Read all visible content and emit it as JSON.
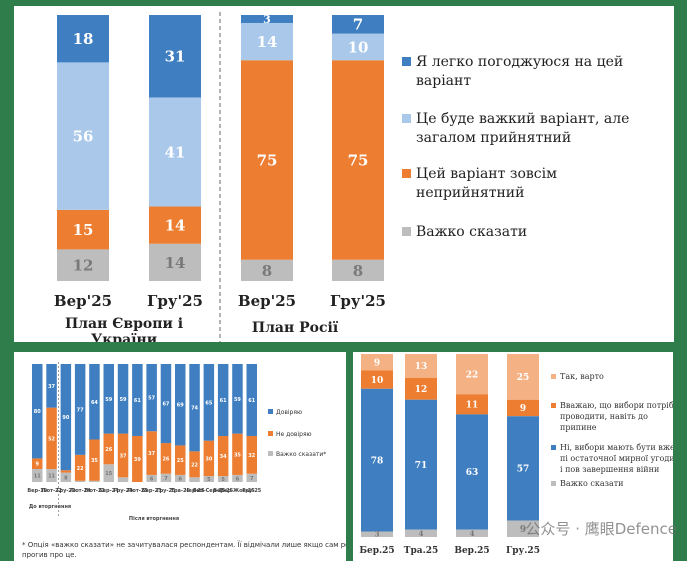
{
  "colors": {
    "agree": "#3f7fc1",
    "acceptable": "#a9c8ea",
    "unacceptable": "#ed7d31",
    "hard": "#bdbdbd",
    "yes_light": "#f4b183"
  },
  "chart_data": [
    {
      "type": "bar",
      "stacked": true,
      "categories": [
        "Вер'25",
        "Гру'25",
        "Вер'25",
        "Гру'25"
      ],
      "groups": [
        {
          "label": "План Європи і України",
          "categories": [
            0,
            1
          ]
        },
        {
          "label": "План Росії",
          "categories": [
            2,
            3
          ]
        }
      ],
      "series": [
        {
          "name": "Я легко погоджуюся на цей варіант",
          "color_key": "agree",
          "values": [
            18,
            31,
            3,
            7
          ]
        },
        {
          "name": "Це буде важкий варіант, але загалом прийнятний",
          "color_key": "acceptable",
          "values": [
            56,
            41,
            14,
            10
          ]
        },
        {
          "name": "Цей варіант зовсім неприйнятний",
          "color_key": "unacceptable",
          "values": [
            15,
            14,
            75,
            75
          ]
        },
        {
          "name": "Важко сказати",
          "color_key": "hard",
          "values": [
            12,
            14,
            8,
            8
          ]
        }
      ],
      "ylim": [
        0,
        100
      ],
      "legend_position": "right"
    },
    {
      "type": "bar",
      "stacked": true,
      "categories": [
        "Вер-19",
        "Лют-22",
        "Гру-22",
        "Лют-24",
        "Лют-23",
        "Бер-24",
        "Гру-24",
        "Лют-25",
        "Бер-25",
        "Гру-25",
        "Тра-25",
        "Чер-25",
        "Лип-Сер-25",
        "Вер-25",
        "Вер-Жов-25",
        "Гру-25"
      ],
      "group_labels": [
        "До вторгнення",
        "Після вторгнення"
      ],
      "series": [
        {
          "name": "Довіряю",
          "color_key": "agree",
          "values": [
            80,
            37,
            90,
            77,
            64,
            59,
            59,
            61,
            57,
            67,
            69,
            74,
            65,
            61,
            59,
            61
          ]
        },
        {
          "name": "Не довіряю",
          "color_key": "unacceptable",
          "values": [
            9,
            52,
            2,
            22,
            35,
            26,
            37,
            39,
            37,
            26,
            25,
            22,
            30,
            34,
            35,
            32
          ]
        },
        {
          "name": "Важко сказати*",
          "color_key": "hard",
          "values": [
            11,
            11,
            8,
            1,
            1,
            15,
            4,
            0,
            6,
            7,
            6,
            4,
            5,
            5,
            6,
            7
          ]
        }
      ],
      "ylim": [
        0,
        100
      ],
      "legend_position": "right",
      "footnote": "* Опція «важко сказати» не зачитувалася респондентам. Її відмічали лише якщо сам респондент прогив про це."
    },
    {
      "type": "bar",
      "stacked": true,
      "categories": [
        "Бер.25",
        "Тра.25",
        "Вер.25",
        "Гру.25"
      ],
      "series": [
        {
          "name": "Так, варто",
          "color_key": "yes_light",
          "values": [
            9,
            13,
            22,
            25
          ]
        },
        {
          "name": "Вважаю, що вибори потрібно проводити, навіть до припине",
          "color_key": "unacceptable",
          "values": [
            10,
            12,
            11,
            9
          ]
        },
        {
          "name": "Ні, вибори мають бути вже пі остаточної мирної угоди і пов завершення війни",
          "color_key": "agree",
          "values": [
            78,
            71,
            63,
            57
          ]
        },
        {
          "name": "Важко сказати",
          "color_key": "hard",
          "values": [
            3,
            4,
            4,
            9
          ]
        }
      ],
      "ylim": [
        0,
        100
      ],
      "legend_position": "right"
    }
  ],
  "watermark": "公众号 · 鹰眼Defence"
}
